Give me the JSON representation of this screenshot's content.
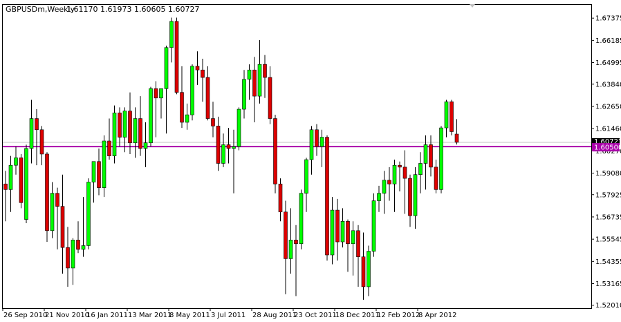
{
  "header": {
    "symbol_timeframe": "GBPUSDm,Weekly",
    "ohlc": "1.61170 1.61973 1.60605 1.60727"
  },
  "colors": {
    "bull": "#00ff00",
    "bear": "#dd0000",
    "wick": "#000000",
    "hline": "#aa00aa",
    "bid_line": "#c0c0c0",
    "price_tag_bg": "#aa00aa",
    "price_tag_text": "#ffffff",
    "bid_tag_bg": "#000000",
    "bid_tag_text": "#ffffff",
    "axis": "#000000"
  },
  "chart_data": {
    "type": "candlestick",
    "ylim": [
      1.52,
      1.679
    ],
    "y_ticks": [
      "1.67375",
      "1.66185",
      "1.64995",
      "1.63840",
      "1.62650",
      "1.61460",
      "1.60270",
      "1.59080",
      "1.57925",
      "1.56735",
      "1.55545",
      "1.54355",
      "1.53165",
      "1.52010"
    ],
    "x_labels": [
      "26 Sep 2010",
      "21 Nov 2010",
      "16 Jan 2011",
      "13 Mar 2011",
      "8 May 2011",
      "3 Jul 2011",
      "28 Aug 2011",
      "23 Oct 2011",
      "18 Dec 2011",
      "12 Feb 2012",
      "8 Apr 2012"
    ],
    "x_label_indices": [
      0,
      8,
      16,
      24,
      32,
      40,
      48,
      56,
      64,
      72,
      80
    ],
    "horizontal_line": {
      "value": 1.605,
      "label": "1.60500"
    },
    "bid_line": {
      "value": 1.60727,
      "label": "1.60727"
    },
    "candles": [
      {
        "o": 1.585,
        "h": 1.592,
        "l": 1.565,
        "c": 1.582
      },
      {
        "o": 1.582,
        "h": 1.6,
        "l": 1.57,
        "c": 1.595
      },
      {
        "o": 1.595,
        "h": 1.605,
        "l": 1.59,
        "c": 1.599
      },
      {
        "o": 1.599,
        "h": 1.601,
        "l": 1.572,
        "c": 1.575
      },
      {
        "o": 1.566,
        "h": 1.606,
        "l": 1.564,
        "c": 1.604
      },
      {
        "o": 1.604,
        "h": 1.63,
        "l": 1.596,
        "c": 1.62
      },
      {
        "o": 1.62,
        "h": 1.625,
        "l": 1.595,
        "c": 1.614
      },
      {
        "o": 1.614,
        "h": 1.616,
        "l": 1.595,
        "c": 1.601
      },
      {
        "o": 1.601,
        "h": 1.602,
        "l": 1.554,
        "c": 1.56
      },
      {
        "o": 1.56,
        "h": 1.586,
        "l": 1.556,
        "c": 1.58
      },
      {
        "o": 1.58,
        "h": 1.583,
        "l": 1.55,
        "c": 1.573
      },
      {
        "o": 1.573,
        "h": 1.59,
        "l": 1.537,
        "c": 1.551
      },
      {
        "o": 1.551,
        "h": 1.562,
        "l": 1.53,
        "c": 1.54
      },
      {
        "o": 1.54,
        "h": 1.556,
        "l": 1.531,
        "c": 1.555
      },
      {
        "o": 1.555,
        "h": 1.565,
        "l": 1.548,
        "c": 1.55
      },
      {
        "o": 1.55,
        "h": 1.578,
        "l": 1.546,
        "c": 1.552
      },
      {
        "o": 1.552,
        "h": 1.588,
        "l": 1.55,
        "c": 1.586
      },
      {
        "o": 1.586,
        "h": 1.597,
        "l": 1.575,
        "c": 1.597
      },
      {
        "o": 1.597,
        "h": 1.604,
        "l": 1.579,
        "c": 1.583
      },
      {
        "o": 1.583,
        "h": 1.611,
        "l": 1.578,
        "c": 1.608
      },
      {
        "o": 1.608,
        "h": 1.62,
        "l": 1.598,
        "c": 1.6
      },
      {
        "o": 1.6,
        "h": 1.627,
        "l": 1.596,
        "c": 1.623
      },
      {
        "o": 1.623,
        "h": 1.626,
        "l": 1.605,
        "c": 1.61
      },
      {
        "o": 1.61,
        "h": 1.626,
        "l": 1.602,
        "c": 1.624
      },
      {
        "o": 1.624,
        "h": 1.634,
        "l": 1.601,
        "c": 1.607
      },
      {
        "o": 1.607,
        "h": 1.626,
        "l": 1.599,
        "c": 1.62
      },
      {
        "o": 1.62,
        "h": 1.632,
        "l": 1.6,
        "c": 1.604
      },
      {
        "o": 1.604,
        "h": 1.618,
        "l": 1.594,
        "c": 1.607
      },
      {
        "o": 1.607,
        "h": 1.637,
        "l": 1.605,
        "c": 1.636
      },
      {
        "o": 1.636,
        "h": 1.64,
        "l": 1.61,
        "c": 1.631
      },
      {
        "o": 1.631,
        "h": 1.636,
        "l": 1.62,
        "c": 1.636
      },
      {
        "o": 1.636,
        "h": 1.659,
        "l": 1.612,
        "c": 1.658
      },
      {
        "o": 1.658,
        "h": 1.674,
        "l": 1.65,
        "c": 1.672
      },
      {
        "o": 1.672,
        "h": 1.674,
        "l": 1.633,
        "c": 1.634
      },
      {
        "o": 1.634,
        "h": 1.648,
        "l": 1.615,
        "c": 1.618
      },
      {
        "o": 1.618,
        "h": 1.628,
        "l": 1.614,
        "c": 1.622
      },
      {
        "o": 1.622,
        "h": 1.649,
        "l": 1.619,
        "c": 1.648
      },
      {
        "o": 1.648,
        "h": 1.656,
        "l": 1.638,
        "c": 1.646
      },
      {
        "o": 1.646,
        "h": 1.652,
        "l": 1.629,
        "c": 1.642
      },
      {
        "o": 1.642,
        "h": 1.648,
        "l": 1.619,
        "c": 1.62
      },
      {
        "o": 1.62,
        "h": 1.629,
        "l": 1.61,
        "c": 1.616
      },
      {
        "o": 1.616,
        "h": 1.621,
        "l": 1.592,
        "c": 1.596
      },
      {
        "o": 1.596,
        "h": 1.612,
        "l": 1.594,
        "c": 1.606
      },
      {
        "o": 1.606,
        "h": 1.615,
        "l": 1.596,
        "c": 1.604
      },
      {
        "o": 1.604,
        "h": 1.614,
        "l": 1.58,
        "c": 1.605
      },
      {
        "o": 1.605,
        "h": 1.626,
        "l": 1.603,
        "c": 1.625
      },
      {
        "o": 1.625,
        "h": 1.646,
        "l": 1.62,
        "c": 1.641
      },
      {
        "o": 1.641,
        "h": 1.649,
        "l": 1.63,
        "c": 1.646
      },
      {
        "o": 1.646,
        "h": 1.653,
        "l": 1.618,
        "c": 1.632
      },
      {
        "o": 1.632,
        "h": 1.662,
        "l": 1.628,
        "c": 1.649
      },
      {
        "o": 1.649,
        "h": 1.654,
        "l": 1.631,
        "c": 1.642
      },
      {
        "o": 1.642,
        "h": 1.648,
        "l": 1.617,
        "c": 1.62
      },
      {
        "o": 1.62,
        "h": 1.622,
        "l": 1.58,
        "c": 1.585
      },
      {
        "o": 1.585,
        "h": 1.588,
        "l": 1.565,
        "c": 1.57
      },
      {
        "o": 1.57,
        "h": 1.576,
        "l": 1.526,
        "c": 1.545
      },
      {
        "o": 1.545,
        "h": 1.572,
        "l": 1.537,
        "c": 1.555
      },
      {
        "o": 1.555,
        "h": 1.563,
        "l": 1.525,
        "c": 1.553
      },
      {
        "o": 1.553,
        "h": 1.582,
        "l": 1.55,
        "c": 1.58
      },
      {
        "o": 1.58,
        "h": 1.599,
        "l": 1.57,
        "c": 1.598
      },
      {
        "o": 1.598,
        "h": 1.616,
        "l": 1.59,
        "c": 1.614
      },
      {
        "o": 1.614,
        "h": 1.617,
        "l": 1.6,
        "c": 1.605
      },
      {
        "o": 1.605,
        "h": 1.614,
        "l": 1.594,
        "c": 1.61
      },
      {
        "o": 1.61,
        "h": 1.611,
        "l": 1.544,
        "c": 1.547
      },
      {
        "o": 1.547,
        "h": 1.578,
        "l": 1.542,
        "c": 1.571
      },
      {
        "o": 1.571,
        "h": 1.577,
        "l": 1.544,
        "c": 1.554
      },
      {
        "o": 1.554,
        "h": 1.572,
        "l": 1.551,
        "c": 1.565
      },
      {
        "o": 1.565,
        "h": 1.566,
        "l": 1.538,
        "c": 1.553
      },
      {
        "o": 1.553,
        "h": 1.565,
        "l": 1.536,
        "c": 1.56
      },
      {
        "o": 1.56,
        "h": 1.563,
        "l": 1.53,
        "c": 1.546
      },
      {
        "o": 1.546,
        "h": 1.559,
        "l": 1.523,
        "c": 1.53
      },
      {
        "o": 1.53,
        "h": 1.552,
        "l": 1.525,
        "c": 1.549
      },
      {
        "o": 1.549,
        "h": 1.58,
        "l": 1.546,
        "c": 1.576
      },
      {
        "o": 1.576,
        "h": 1.584,
        "l": 1.57,
        "c": 1.58
      },
      {
        "o": 1.58,
        "h": 1.592,
        "l": 1.569,
        "c": 1.587
      },
      {
        "o": 1.587,
        "h": 1.594,
        "l": 1.576,
        "c": 1.585
      },
      {
        "o": 1.585,
        "h": 1.598,
        "l": 1.57,
        "c": 1.595
      },
      {
        "o": 1.595,
        "h": 1.597,
        "l": 1.581,
        "c": 1.594
      },
      {
        "o": 1.594,
        "h": 1.603,
        "l": 1.569,
        "c": 1.588
      },
      {
        "o": 1.588,
        "h": 1.59,
        "l": 1.562,
        "c": 1.568
      },
      {
        "o": 1.568,
        "h": 1.594,
        "l": 1.561,
        "c": 1.59
      },
      {
        "o": 1.59,
        "h": 1.602,
        "l": 1.58,
        "c": 1.596
      },
      {
        "o": 1.596,
        "h": 1.611,
        "l": 1.582,
        "c": 1.606
      },
      {
        "o": 1.606,
        "h": 1.611,
        "l": 1.589,
        "c": 1.594
      },
      {
        "o": 1.594,
        "h": 1.598,
        "l": 1.58,
        "c": 1.582
      },
      {
        "o": 1.582,
        "h": 1.616,
        "l": 1.58,
        "c": 1.615
      },
      {
        "o": 1.615,
        "h": 1.63,
        "l": 1.61,
        "c": 1.629
      },
      {
        "o": 1.629,
        "h": 1.63,
        "l": 1.611,
        "c": 1.613
      },
      {
        "o": 1.6117,
        "h": 1.6197,
        "l": 1.6061,
        "c": 1.6073
      }
    ]
  }
}
